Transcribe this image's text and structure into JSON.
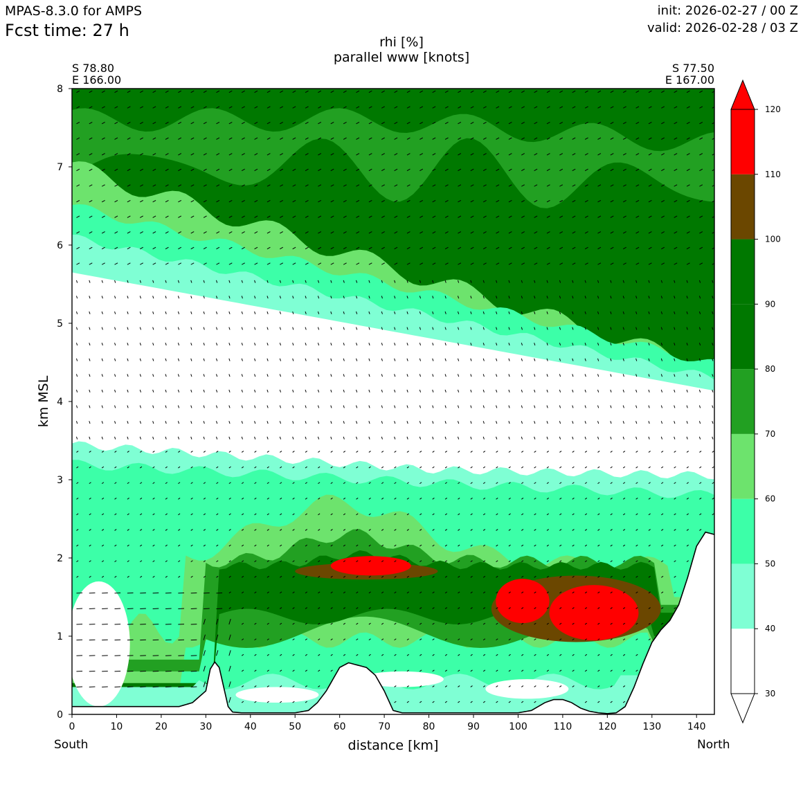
{
  "header": {
    "model": "MPAS-8.3.0 for AMPS",
    "fcst_time": "Fcst time:   27 h",
    "init": "init: 2026-02-27 / 00 Z",
    "valid": "valid: 2026-02-28 / 03 Z"
  },
  "endpoints": {
    "left_lat": "S 78.80",
    "left_lon": "E 166.00",
    "right_lat": "S 77.50",
    "right_lon": "E 167.00",
    "south": "South",
    "north": "North"
  },
  "chart_data": {
    "type": "heatmap",
    "title": "rhi [%]",
    "subtitle": "parallel www [knots]",
    "xlabel": "distance [km]",
    "ylabel": "km MSL",
    "xlim": [
      0,
      144
    ],
    "ylim": [
      0,
      8
    ],
    "x_ticks": [
      "0",
      "10",
      "20",
      "30",
      "40",
      "50",
      "60",
      "70",
      "80",
      "90",
      "100",
      "110",
      "120",
      "130",
      "140"
    ],
    "y_ticks": [
      "0",
      "1",
      "2",
      "3",
      "4",
      "5",
      "6",
      "7",
      "8"
    ],
    "colorbar": {
      "levels": [
        "30",
        "40",
        "50",
        "60",
        "70",
        "80",
        "90",
        "100",
        "110",
        "120"
      ],
      "colors": [
        "#ffffff",
        "#7fffd4",
        "#3cffa8",
        "#6de36d",
        "#22a022",
        "#007800",
        "#007800",
        "#6b4700",
        "#ff0000"
      ],
      "extend": "both"
    },
    "terrain": {
      "x": [
        0,
        24,
        27,
        30,
        31,
        32,
        33,
        34,
        35,
        36,
        38,
        40,
        50,
        53,
        55,
        57,
        59,
        60,
        62,
        64,
        66,
        68,
        70,
        72,
        74,
        100,
        103,
        106,
        108,
        110,
        112,
        114,
        116,
        118,
        120,
        122,
        124,
        126,
        128,
        130,
        132,
        134,
        136,
        138,
        140,
        142,
        144
      ],
      "y": [
        0.1,
        0.1,
        0.15,
        0.3,
        0.58,
        0.67,
        0.6,
        0.35,
        0.1,
        0.03,
        0.02,
        0.02,
        0.02,
        0.05,
        0.15,
        0.3,
        0.5,
        0.6,
        0.66,
        0.63,
        0.6,
        0.5,
        0.3,
        0.05,
        0.02,
        0.02,
        0.05,
        0.15,
        0.19,
        0.19,
        0.15,
        0.08,
        0.04,
        0.02,
        0.01,
        0.02,
        0.1,
        0.35,
        0.65,
        0.92,
        1.08,
        1.2,
        1.4,
        1.75,
        2.15,
        2.33,
        2.3
      ]
    },
    "rhi_bands": [
      {
        "name": "top-green",
        "color": "#22a022"
      },
      {
        "name": "upper-moist-60",
        "color": "#6de36d"
      },
      {
        "name": "upper-moist-50",
        "color": "#3cffa8"
      },
      {
        "name": "upper-moist-40",
        "color": "#7fffd4"
      },
      {
        "name": "dry-mid",
        "color": "#ffffff"
      },
      {
        "name": "lower-40",
        "color": "#7fffd4"
      },
      {
        "name": "lower-50",
        "color": "#3cffa8"
      },
      {
        "name": "lower-60",
        "color": "#6de36d"
      },
      {
        "name": "lower-70",
        "color": "#22a022"
      },
      {
        "name": "lower-80",
        "color": "#007800"
      },
      {
        "name": "sat-100",
        "color": "#6b4700"
      },
      {
        "name": "sat-110",
        "color": "#ff0000"
      }
    ]
  }
}
